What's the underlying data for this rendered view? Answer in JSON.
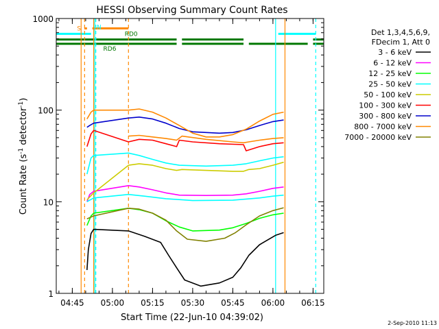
{
  "chart_data": {
    "type": "line",
    "title": "HESSI Observing Summary Count Rates",
    "xlabel": "Start Time (22-Jun-10 04:39:02)",
    "ylabel_main": "Count Rate (s",
    "ylabel_sup1": "-1",
    "ylabel_mid": " detector",
    "ylabel_sup2": "-1",
    "ylabel_end": ")",
    "y_scale": "log",
    "ylim": [
      1,
      1000
    ],
    "xlim": [
      "04:39",
      "06:19"
    ],
    "x_ticks": [
      "04:45",
      "05:00",
      "05:15",
      "05:30",
      "05:45",
      "06:00",
      "06:15"
    ],
    "y_ticks": [
      "1",
      "10",
      "100",
      "1000"
    ],
    "footer": "2-Sep-2010 11:13",
    "legend": {
      "header1": "Det 1,3,4,5,6,9,",
      "header2": "FDecim 1, Att 0",
      "entries": [
        {
          "label": "3 - 6 keV",
          "color": "#000000"
        },
        {
          "label": "6 - 12 keV",
          "color": "#ff00ff"
        },
        {
          "label": "12 - 25 keV",
          "color": "#00ff00"
        },
        {
          "label": "25 - 50 keV",
          "color": "#00ffff"
        },
        {
          "label": "50 - 100 keV",
          "color": "#cccc00"
        },
        {
          "label": "100 - 300 keV",
          "color": "#ff0000"
        },
        {
          "label": "300 - 800 keV",
          "color": "#0000cc"
        },
        {
          "label": "800 - 7000 keV",
          "color": "#ff8800"
        },
        {
          "label": "7000 - 20000 keV",
          "color": "#808000"
        }
      ]
    },
    "flags": [
      {
        "label": "S",
        "color": "#ff8800",
        "y": 780,
        "segments": [
          [
            "04:49.5",
            "04:50.5"
          ],
          [
            "04:52.5",
            "05:06"
          ]
        ]
      },
      {
        "label": "N",
        "color": "#00ffff",
        "y": 680,
        "segments": [
          [
            "04:39",
            "04:52"
          ],
          [
            "06:02",
            "06:16"
          ]
        ]
      },
      {
        "label": "RD0",
        "color": "#007700",
        "y": 590,
        "segments": [
          [
            "04:39",
            "05:24"
          ],
          [
            "05:26",
            "05:49"
          ],
          [
            "06:15",
            "06:19"
          ]
        ]
      },
      {
        "label": "RD6",
        "color": "#007700",
        "y": 530,
        "segments": [
          [
            "04:39",
            "05:24"
          ],
          [
            "05:26",
            "05:49"
          ],
          [
            "05:51",
            "06:13"
          ],
          [
            "06:15",
            "06:19"
          ]
        ]
      }
    ],
    "vlines": [
      {
        "t": "04:48.3",
        "color": "#ff8800",
        "style": "solid"
      },
      {
        "t": "04:49.6",
        "color": "#ff8800",
        "style": "dashed"
      },
      {
        "t": "04:53.0",
        "color": "#ff8800",
        "style": "solid"
      },
      {
        "t": "04:53.4",
        "color": "#00ffff",
        "style": "solid"
      },
      {
        "t": "04:53.8",
        "color": "#00ffff",
        "style": "dashed"
      },
      {
        "t": "05:06.0",
        "color": "#ff8800",
        "style": "dashed"
      },
      {
        "t": "06:01.0",
        "color": "#00ffff",
        "style": "solid"
      },
      {
        "t": "06:04.5",
        "color": "#ff8800",
        "style": "solid"
      },
      {
        "t": "06:16.0",
        "color": "#00ffff",
        "style": "dashed"
      }
    ],
    "series": [
      {
        "color": "#000000",
        "points": [
          [
            "04:50.5",
            1.8
          ],
          [
            "04:51",
            3
          ],
          [
            "04:52",
            4.5
          ],
          [
            "04:53",
            5
          ],
          [
            "05:06",
            4.8
          ],
          [
            "05:12",
            4.2
          ],
          [
            "05:18",
            3.6
          ],
          [
            "05:21",
            2.6
          ],
          [
            "05:24",
            1.9
          ],
          [
            "05:27",
            1.4
          ],
          [
            "05:33",
            1.2
          ],
          [
            "05:40",
            1.3
          ],
          [
            "05:45",
            1.5
          ],
          [
            "05:48",
            1.9
          ],
          [
            "05:51",
            2.6
          ],
          [
            "05:55",
            3.4
          ],
          [
            "06:01",
            4.3
          ],
          [
            "06:04",
            4.6
          ]
        ]
      },
      {
        "color": "#ff00ff",
        "points": [
          [
            "04:50.5",
            10
          ],
          [
            "04:51.5",
            12
          ],
          [
            "04:53",
            13
          ],
          [
            "05:06",
            15
          ],
          [
            "05:10",
            14.5
          ],
          [
            "05:15",
            13.5
          ],
          [
            "05:20",
            12.5
          ],
          [
            "05:25",
            11.8
          ],
          [
            "05:35",
            11.7
          ],
          [
            "05:45",
            11.8
          ],
          [
            "05:50",
            12.2
          ],
          [
            "05:55",
            13
          ],
          [
            "06:00",
            14
          ],
          [
            "06:04",
            14.5
          ]
        ]
      },
      {
        "color": "#00ff00",
        "points": [
          [
            "04:50.5",
            5.5
          ],
          [
            "04:52",
            7
          ],
          [
            "04:53",
            7.5
          ],
          [
            "05:06",
            8.5
          ],
          [
            "05:10",
            8.2
          ],
          [
            "05:15",
            7.5
          ],
          [
            "05:20",
            6.2
          ],
          [
            "05:25",
            5.3
          ],
          [
            "05:30",
            4.8
          ],
          [
            "05:40",
            4.9
          ],
          [
            "05:45",
            5.2
          ],
          [
            "05:50",
            5.8
          ],
          [
            "05:55",
            6.6
          ],
          [
            "06:00",
            7.2
          ],
          [
            "06:04",
            7.5
          ]
        ]
      },
      {
        "color": "#00ffff",
        "points": [
          [
            "04:50.5",
            20
          ],
          [
            "04:52",
            30
          ],
          [
            "04:53",
            32
          ],
          [
            "05:06",
            34
          ],
          [
            "05:10",
            32
          ],
          [
            "05:15",
            29
          ],
          [
            "05:20",
            26.5
          ],
          [
            "05:25",
            25
          ],
          [
            "05:35",
            24.5
          ],
          [
            "05:45",
            25
          ],
          [
            "05:50",
            26
          ],
          [
            "05:55",
            28
          ],
          [
            "06:00",
            30
          ],
          [
            "06:04",
            31
          ]
        ]
      },
      {
        "color": "#00ffff",
        "points": [
          [
            "04:50.5",
            10
          ],
          [
            "04:53",
            11
          ],
          [
            "05:06",
            12
          ],
          [
            "05:12",
            11.5
          ],
          [
            "05:20",
            10.8
          ],
          [
            "05:30",
            10.3
          ],
          [
            "05:45",
            10.4
          ],
          [
            "05:55",
            11
          ],
          [
            "06:00",
            11.5
          ],
          [
            "06:04",
            11.8
          ]
        ]
      },
      {
        "color": "#cccc00",
        "points": [
          [
            "04:50.5",
            10.5
          ],
          [
            "04:53",
            12.5
          ],
          [
            "05:06",
            25
          ],
          [
            "05:10",
            26
          ],
          [
            "05:15",
            25
          ],
          [
            "05:20",
            23
          ],
          [
            "05:24",
            22
          ],
          [
            "05:26",
            22.5
          ],
          [
            "05:35",
            22
          ],
          [
            "05:45",
            21.5
          ],
          [
            "05:49",
            21.5
          ],
          [
            "05:51",
            22.5
          ],
          [
            "05:55",
            23
          ],
          [
            "06:00",
            25
          ],
          [
            "06:04",
            27
          ]
        ]
      },
      {
        "color": "#ff0000",
        "points": [
          [
            "04:50.5",
            40
          ],
          [
            "04:52",
            55
          ],
          [
            "04:53",
            60
          ],
          [
            "05:06",
            45
          ],
          [
            "05:10",
            48
          ],
          [
            "05:15",
            47
          ],
          [
            "05:20",
            43
          ],
          [
            "05:24",
            40
          ],
          [
            "05:25",
            47
          ],
          [
            "05:30",
            45
          ],
          [
            "05:40",
            43
          ],
          [
            "05:49",
            42
          ],
          [
            "05:50",
            36
          ],
          [
            "05:55",
            40
          ],
          [
            "06:00",
            43
          ],
          [
            "06:04",
            44
          ]
        ]
      },
      {
        "color": "#0000cc",
        "points": [
          [
            "04:50.5",
            65
          ],
          [
            "04:51.5",
            68
          ],
          [
            "04:53",
            72
          ],
          [
            "05:06",
            82
          ],
          [
            "05:10",
            84
          ],
          [
            "05:15",
            80
          ],
          [
            "05:20",
            72
          ],
          [
            "05:25",
            63
          ],
          [
            "05:30",
            58
          ],
          [
            "05:40",
            56
          ],
          [
            "05:45",
            57
          ],
          [
            "05:50",
            61
          ],
          [
            "05:55",
            68
          ],
          [
            "06:00",
            75
          ],
          [
            "06:04",
            78
          ]
        ]
      },
      {
        "color": "#ff8800",
        "points": [
          [
            "04:50.5",
            80
          ],
          [
            "04:52",
            95
          ],
          [
            "04:53",
            100
          ],
          [
            "05:06",
            100
          ],
          [
            "05:10",
            103
          ],
          [
            "05:15",
            95
          ],
          [
            "05:20",
            82
          ],
          [
            "05:25",
            68
          ],
          [
            "05:30",
            56
          ],
          [
            "05:35",
            51
          ],
          [
            "05:40",
            51
          ],
          [
            "05:45",
            54
          ],
          [
            "05:50",
            62
          ],
          [
            "05:55",
            76
          ],
          [
            "06:00",
            90
          ],
          [
            "06:04",
            95
          ]
        ]
      },
      {
        "color": "#808000",
        "points": [
          [
            "04:50.5",
            6.5
          ],
          [
            "04:53",
            7
          ],
          [
            "05:06",
            8.5
          ],
          [
            "05:10",
            8.3
          ],
          [
            "05:15",
            7.5
          ],
          [
            "05:20",
            6.3
          ],
          [
            "05:24",
            4.8
          ],
          [
            "05:28",
            3.9
          ],
          [
            "05:35",
            3.7
          ],
          [
            "05:42",
            4
          ],
          [
            "05:46",
            4.6
          ],
          [
            "05:50",
            5.6
          ],
          [
            "05:55",
            7
          ],
          [
            "06:00",
            8
          ],
          [
            "06:04",
            8.6
          ]
        ]
      },
      {
        "color": "#ff8800",
        "points": [
          [
            "05:06",
            52
          ],
          [
            "05:10",
            53
          ],
          [
            "05:15",
            51
          ],
          [
            "05:20",
            49
          ],
          [
            "05:24",
            47
          ],
          [
            "05:26",
            52
          ],
          [
            "05:35",
            48
          ],
          [
            "05:45",
            45
          ],
          [
            "05:49",
            44
          ],
          [
            "05:51",
            45
          ],
          [
            "05:55",
            47
          ],
          [
            "06:00",
            49
          ],
          [
            "06:04",
            50
          ]
        ]
      }
    ]
  }
}
